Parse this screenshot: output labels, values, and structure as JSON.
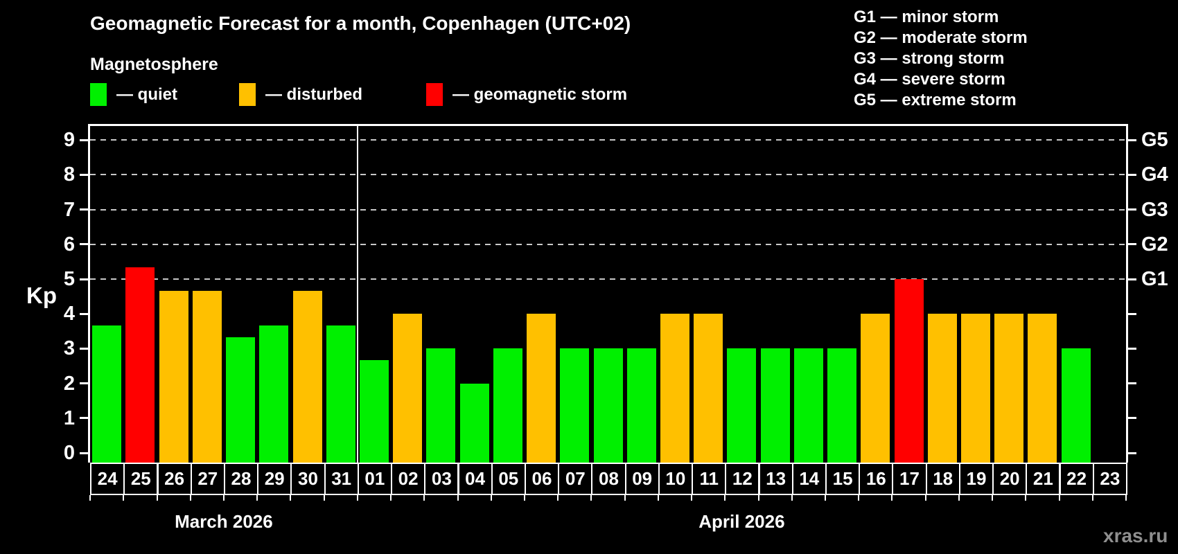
{
  "title": "Geomagnetic Forecast for a month, Copenhagen (UTC+02)",
  "subtitle": "Magnetosphere",
  "legend": {
    "items": [
      {
        "status": "quiet",
        "label": "— quiet"
      },
      {
        "status": "disturbed",
        "label": "— disturbed"
      },
      {
        "status": "storm",
        "label": "— geomagnetic storm"
      }
    ]
  },
  "g_legend": [
    "G1 — minor storm",
    "G2 — moderate storm",
    "G3 — strong storm",
    "G4 — severe storm",
    "G5 — extreme storm"
  ],
  "watermark": "xras.ru",
  "colors": {
    "quiet": "#00f000",
    "disturbed": "#ffc000",
    "storm": "#ff0000",
    "background": "#000000",
    "grid": "#c8c8c8",
    "axis": "#ffffff",
    "watermark": "#8f8f8f"
  },
  "chart_data": {
    "type": "bar",
    "title": "Geomagnetic Forecast for a month, Copenhagen (UTC+02)",
    "xlabel": "",
    "ylabel": "Kp",
    "ylim": [
      0,
      9
    ],
    "grid": "dashed horizontal lines at Kp 5-9 only",
    "legend_position": "top",
    "kp_ticks": [
      0,
      1,
      2,
      3,
      4,
      5,
      6,
      7,
      8,
      9
    ],
    "grid_kp": [
      5,
      6,
      7,
      8,
      9
    ],
    "g_ticks": [
      {
        "kp": 5,
        "label": "G1"
      },
      {
        "kp": 6,
        "label": "G2"
      },
      {
        "kp": 7,
        "label": "G3"
      },
      {
        "kp": 8,
        "label": "G4"
      },
      {
        "kp": 9,
        "label": "G5"
      }
    ],
    "months": [
      {
        "label": "March 2026",
        "days": 8
      },
      {
        "label": "April 2026",
        "days": 23
      }
    ],
    "categories": [
      "24",
      "25",
      "26",
      "27",
      "28",
      "29",
      "30",
      "31",
      "01",
      "02",
      "03",
      "04",
      "05",
      "06",
      "07",
      "08",
      "09",
      "10",
      "11",
      "12",
      "13",
      "14",
      "15",
      "16",
      "17",
      "18",
      "19",
      "20",
      "21",
      "22",
      "23"
    ],
    "bars": [
      {
        "day": "24",
        "kp": 3.67,
        "status": "quiet"
      },
      {
        "day": "25",
        "kp": 5.33,
        "status": "storm"
      },
      {
        "day": "26",
        "kp": 4.67,
        "status": "disturbed"
      },
      {
        "day": "27",
        "kp": 4.67,
        "status": "disturbed"
      },
      {
        "day": "28",
        "kp": 3.33,
        "status": "quiet"
      },
      {
        "day": "29",
        "kp": 3.67,
        "status": "quiet"
      },
      {
        "day": "30",
        "kp": 4.67,
        "status": "disturbed"
      },
      {
        "day": "31",
        "kp": 3.67,
        "status": "quiet"
      },
      {
        "day": "01",
        "kp": 2.67,
        "status": "quiet"
      },
      {
        "day": "02",
        "kp": 4,
        "status": "disturbed"
      },
      {
        "day": "03",
        "kp": 3,
        "status": "quiet"
      },
      {
        "day": "04",
        "kp": 2,
        "status": "quiet"
      },
      {
        "day": "05",
        "kp": 3,
        "status": "quiet"
      },
      {
        "day": "06",
        "kp": 4,
        "status": "disturbed"
      },
      {
        "day": "07",
        "kp": 3,
        "status": "quiet"
      },
      {
        "day": "08",
        "kp": 3,
        "status": "quiet"
      },
      {
        "day": "09",
        "kp": 3,
        "status": "quiet"
      },
      {
        "day": "10",
        "kp": 4,
        "status": "disturbed"
      },
      {
        "day": "11",
        "kp": 4,
        "status": "disturbed"
      },
      {
        "day": "12",
        "kp": 3,
        "status": "quiet"
      },
      {
        "day": "13",
        "kp": 3,
        "status": "quiet"
      },
      {
        "day": "14",
        "kp": 3,
        "status": "quiet"
      },
      {
        "day": "15",
        "kp": 3,
        "status": "quiet"
      },
      {
        "day": "16",
        "kp": 4,
        "status": "disturbed"
      },
      {
        "day": "17",
        "kp": 5,
        "status": "storm"
      },
      {
        "day": "18",
        "kp": 4,
        "status": "disturbed"
      },
      {
        "day": "19",
        "kp": 4,
        "status": "disturbed"
      },
      {
        "day": "20",
        "kp": 4,
        "status": "disturbed"
      },
      {
        "day": "21",
        "kp": 4,
        "status": "disturbed"
      },
      {
        "day": "22",
        "kp": 3,
        "status": "quiet"
      },
      {
        "day": "23",
        "kp": null,
        "status": "none"
      }
    ]
  }
}
